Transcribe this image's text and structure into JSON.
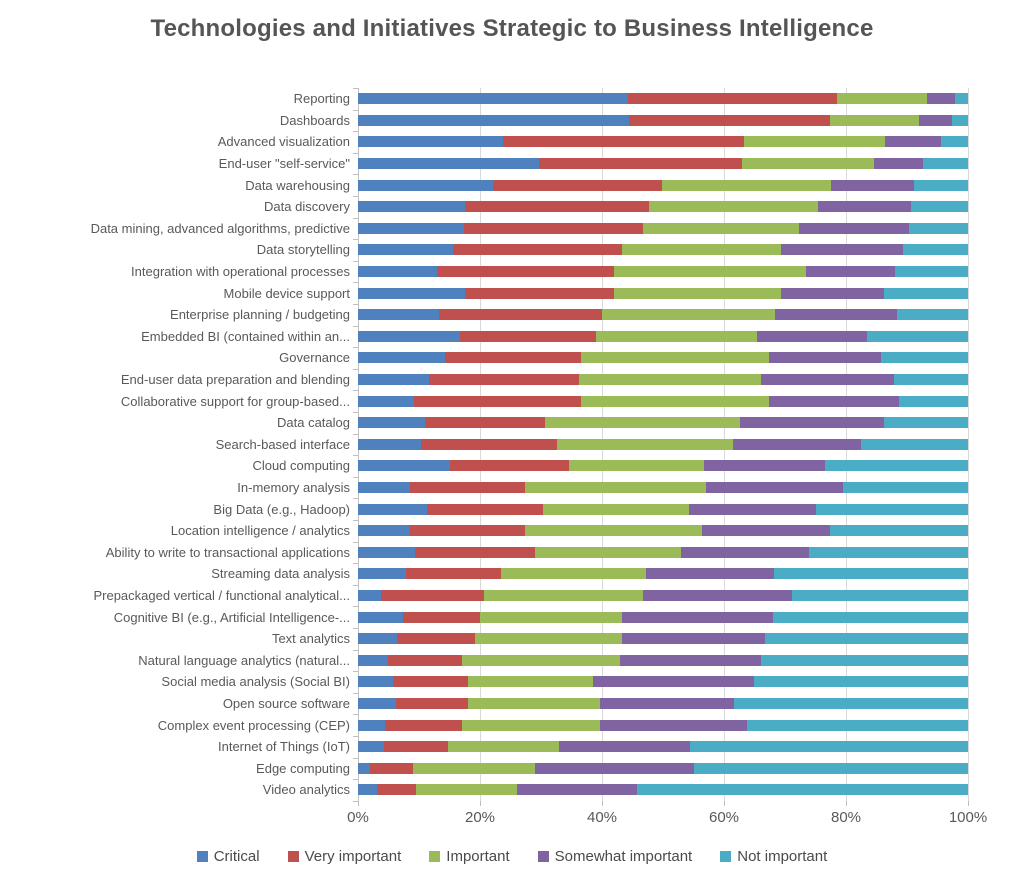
{
  "chart_data": {
    "type": "bar",
    "stacked": true,
    "orientation": "horizontal",
    "title": "Technologies and Initiatives Strategic to Business Intelligence",
    "value_unit": "percent of respondents",
    "xlim": [
      0,
      100
    ],
    "grid": true,
    "legend_position": "bottom",
    "x_ticks": [
      0,
      20,
      40,
      60,
      80,
      100
    ],
    "x_tick_labels": [
      "0%",
      "20%",
      "40%",
      "60%",
      "80%",
      "100%"
    ],
    "categories": [
      "Reporting",
      "Dashboards",
      "Advanced visualization",
      "End-user \"self-service\"",
      "Data warehousing",
      "Data discovery",
      "Data mining, advanced algorithms, predictive",
      "Data storytelling",
      "Integration with operational processes",
      "Mobile device support",
      "Enterprise planning / budgeting",
      "Embedded BI (contained within an...",
      "Governance",
      "End-user data preparation and blending",
      "Collaborative support for group-based...",
      "Data catalog",
      "Search-based interface",
      "Cloud computing",
      "In-memory analysis",
      "Big Data (e.g., Hadoop)",
      "Location intelligence / analytics",
      "Ability to write to transactional applications",
      "Streaming data analysis",
      "Prepackaged vertical / functional analytical...",
      "Cognitive BI (e.g., Artificial Intelligence-...",
      "Text analytics",
      "Natural language analytics (natural...",
      "Social media analysis (Social BI)",
      "Open source software",
      "Complex event processing (CEP)",
      "Internet of Things (IoT)",
      "Edge computing",
      "Video analytics"
    ],
    "series": [
      {
        "id": "critical",
        "name": "Critical",
        "color": "#4e81bd",
        "values": [
          44.3,
          44.5,
          23.8,
          29.6,
          22.1,
          17.6,
          17.3,
          15.6,
          12.9,
          17.6,
          13.3,
          16.7,
          14.2,
          11.7,
          9.2,
          11.0,
          10.3,
          15.0,
          8.6,
          11.3,
          8.6,
          9.3,
          7.9,
          3.8,
          7.3,
          6.4,
          4.9,
          5.8,
          6.3,
          4.4,
          4.3,
          2.0,
          3.1
        ]
      },
      {
        "id": "very-important",
        "name": "Very important",
        "color": "#c0504d",
        "values": [
          34.3,
          32.8,
          39.4,
          33.3,
          27.8,
          30.1,
          29.4,
          27.7,
          29.0,
          24.3,
          26.7,
          22.3,
          22.4,
          24.6,
          27.3,
          19.6,
          22.4,
          19.6,
          18.8,
          19.0,
          18.8,
          19.7,
          15.5,
          16.8,
          12.7,
          12.7,
          12.1,
          12.2,
          11.7,
          12.7,
          10.5,
          7.0,
          6.4
        ]
      },
      {
        "id": "important",
        "name": "Important",
        "color": "#9bbb59",
        "values": [
          14.7,
          14.7,
          23.2,
          21.7,
          27.7,
          27.7,
          25.6,
          26.0,
          31.6,
          27.5,
          28.4,
          26.4,
          30.7,
          29.8,
          30.8,
          32.1,
          28.8,
          22.2,
          29.6,
          23.9,
          29.0,
          23.9,
          23.8,
          26.1,
          23.2,
          24.2,
          26.0,
          20.5,
          21.7,
          22.6,
          18.2,
          20.1,
          16.5
        ]
      },
      {
        "id": "somewhat-important",
        "name": "Somewhat important",
        "color": "#8064a2",
        "values": [
          4.5,
          5.4,
          9.2,
          8.1,
          13.5,
          15.3,
          18.1,
          20.0,
          14.5,
          16.9,
          20.0,
          18.1,
          18.4,
          21.7,
          21.4,
          23.6,
          21.0,
          19.8,
          22.5,
          20.9,
          20.9,
          21.1,
          21.0,
          24.4,
          24.9,
          23.4,
          23.1,
          26.5,
          22.0,
          24.1,
          21.4,
          26.0,
          19.8
        ]
      },
      {
        "id": "not-important",
        "name": "Not important",
        "color": "#4bacc6",
        "values": [
          2.2,
          2.6,
          4.4,
          7.3,
          8.9,
          9.3,
          9.6,
          10.7,
          12.0,
          13.7,
          11.6,
          16.5,
          14.3,
          12.2,
          11.3,
          13.7,
          17.5,
          23.4,
          20.5,
          24.9,
          22.7,
          26.0,
          31.8,
          28.9,
          31.9,
          33.3,
          33.9,
          35.0,
          38.3,
          36.2,
          45.6,
          44.9,
          54.2
        ]
      }
    ]
  }
}
